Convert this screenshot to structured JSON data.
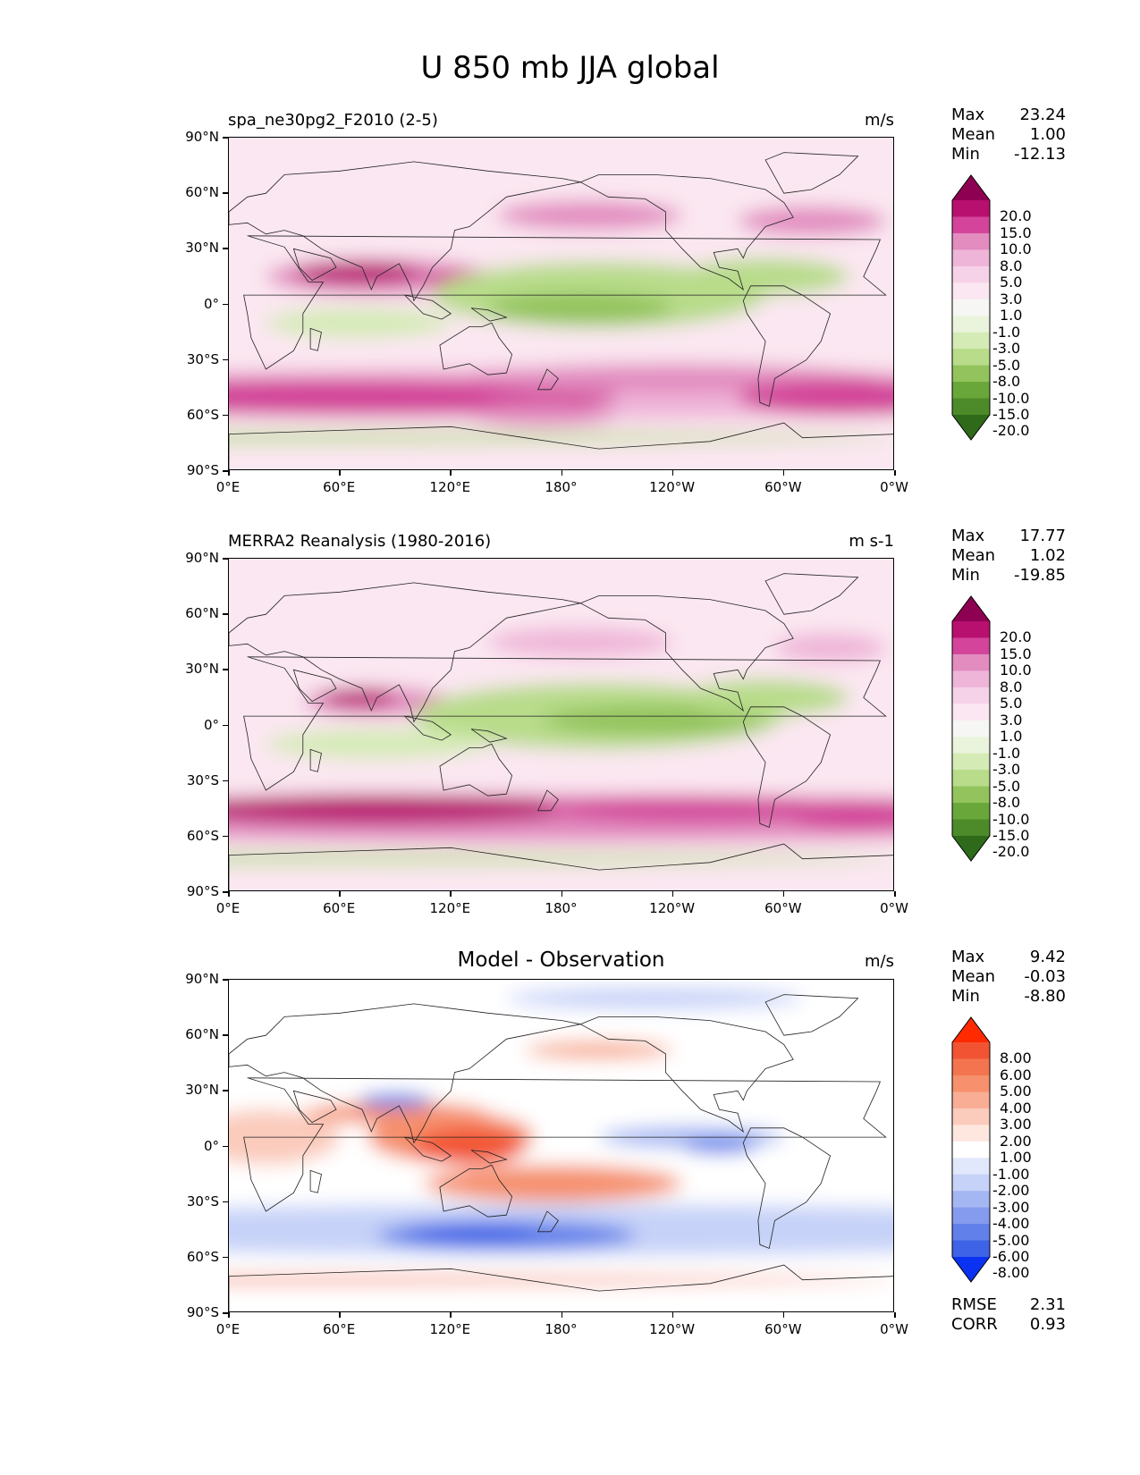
{
  "figure": {
    "title": "U 850 mb JJA global"
  },
  "axes": {
    "y_ticks": [
      "90°N",
      "60°N",
      "30°N",
      "0°",
      "30°S",
      "60°S",
      "90°S"
    ],
    "x_ticks": [
      "0°E",
      "60°E",
      "120°E",
      "180°",
      "120°W",
      "60°W",
      "0°W"
    ]
  },
  "panels": [
    {
      "title": "spa_ne30pg2_F2010 (2-5)",
      "units": "m/s",
      "stats": [
        {
          "label": "Max",
          "value": "23.24"
        },
        {
          "label": "Mean",
          "value": "1.00"
        },
        {
          "label": "Min",
          "value": "-12.13"
        }
      ],
      "colorbar": {
        "labels": [
          "20.0",
          "15.0",
          "10.0",
          "8.0",
          "5.0",
          "3.0",
          "1.0",
          "-1.0",
          "-3.0",
          "-5.0",
          "-8.0",
          "-10.0",
          "-15.0",
          "-20.0"
        ],
        "colors": [
          "#8e0152",
          "#b8106f",
          "#d3449a",
          "#e28cc0",
          "#efb5d8",
          "#f6d2e8",
          "#fbe7f1",
          "#f6f6f4",
          "#eaf4dc",
          "#d4ebb5",
          "#b8dc8a",
          "#93c35c",
          "#6aa73a",
          "#4d8b2a",
          "#2e6a1a"
        ]
      }
    },
    {
      "title": "MERRA2 Reanalysis (1980-2016)",
      "units": "m s-1",
      "stats": [
        {
          "label": "Max",
          "value": "17.77"
        },
        {
          "label": "Mean",
          "value": "1.02"
        },
        {
          "label": "Min",
          "value": "-19.85"
        }
      ],
      "colorbar": {
        "labels": [
          "20.0",
          "15.0",
          "10.0",
          "8.0",
          "5.0",
          "3.0",
          "1.0",
          "-1.0",
          "-3.0",
          "-5.0",
          "-8.0",
          "-10.0",
          "-15.0",
          "-20.0"
        ],
        "colors": [
          "#8e0152",
          "#b8106f",
          "#d3449a",
          "#e28cc0",
          "#efb5d8",
          "#f6d2e8",
          "#fbe7f1",
          "#f6f6f4",
          "#eaf4dc",
          "#d4ebb5",
          "#b8dc8a",
          "#93c35c",
          "#6aa73a",
          "#4d8b2a",
          "#2e6a1a"
        ]
      }
    },
    {
      "title": "Model - Observation",
      "units": "m/s",
      "stats": [
        {
          "label": "Max",
          "value": "9.42"
        },
        {
          "label": "Mean",
          "value": "-0.03"
        },
        {
          "label": "Min",
          "value": "-8.80"
        }
      ],
      "metrics": [
        {
          "label": "RMSE",
          "value": "2.31"
        },
        {
          "label": "CORR",
          "value": "0.93"
        }
      ],
      "colorbar": {
        "labels": [
          "8.00",
          "6.00",
          "5.00",
          "4.00",
          "3.00",
          "2.00",
          "1.00",
          "-1.00",
          "-2.00",
          "-3.00",
          "-4.00",
          "-5.00",
          "-6.00",
          "-8.00"
        ],
        "colors": [
          "#ff2a00",
          "#f25433",
          "#f4744f",
          "#f6906d",
          "#f8ad94",
          "#fbcbbc",
          "#fde7df",
          "#ffffff",
          "#e2e8fb",
          "#c6d2f8",
          "#a5b7f3",
          "#849bee",
          "#6180ea",
          "#3e63e6",
          "#0a32f0"
        ]
      }
    }
  ]
}
